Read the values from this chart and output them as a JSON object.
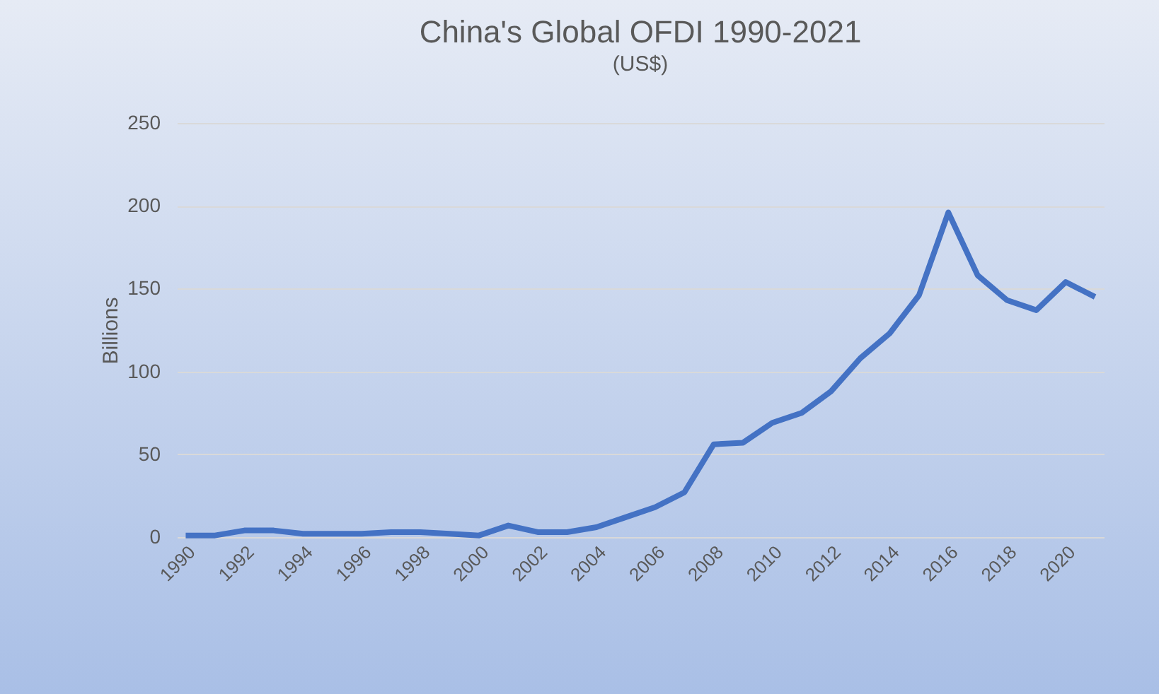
{
  "chart_data": {
    "type": "line",
    "title": "China's Global OFDI 1990-2021",
    "subtitle": "(US$)",
    "ylabel": "Billions",
    "categories": [
      "1990",
      null,
      "1992",
      null,
      "1994",
      null,
      "1996",
      null,
      "1998",
      null,
      "2000",
      null,
      "2002",
      null,
      "2004",
      null,
      "2006",
      null,
      "2008",
      null,
      "2010",
      null,
      "2012",
      null,
      "2014",
      null,
      "2016",
      null,
      "2018",
      null,
      "2020",
      null
    ],
    "series": [
      {
        "color": "#4472c4",
        "values": [
          1,
          1,
          4,
          4,
          2,
          2,
          2,
          3,
          3,
          2,
          1,
          7,
          3,
          3,
          6,
          12,
          18,
          27,
          56,
          57,
          69,
          75,
          88,
          108,
          123,
          146,
          196,
          158,
          143,
          137,
          154,
          145
        ]
      }
    ],
    "ylim": [
      0,
      250
    ],
    "yticks": [
      0,
      50,
      100,
      150,
      200,
      250
    ],
    "grid": "y",
    "marker": "none",
    "line_style": "solid"
  }
}
